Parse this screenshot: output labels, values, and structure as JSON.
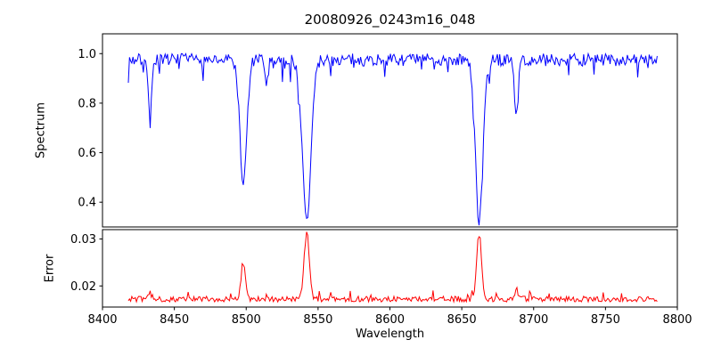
{
  "chart_data": {
    "type": "line",
    "title": "20080926_0243m16_048",
    "xlabel": "Wavelength",
    "xlim": [
      8400,
      8800
    ],
    "xticks": [
      {
        "value": 8400,
        "label": "8400"
      },
      {
        "value": 8450,
        "label": "8450"
      },
      {
        "value": 8500,
        "label": "8500"
      },
      {
        "value": 8550,
        "label": "8550"
      },
      {
        "value": 8600,
        "label": "8600"
      },
      {
        "value": 8650,
        "label": "8650"
      },
      {
        "value": 8700,
        "label": "8700"
      },
      {
        "value": 8750,
        "label": "8750"
      },
      {
        "value": 8800,
        "label": "8800"
      }
    ],
    "x_data_range": [
      8418,
      8786
    ],
    "sample_step": 0.8,
    "noise_seed": 7,
    "grid": false,
    "legend": "none",
    "panels": [
      {
        "name": "spectrum",
        "ylabel": "Spectrum",
        "ylim": [
          0.3,
          1.08
        ],
        "yticks": [
          {
            "value": 0.4,
            "label": "0.4"
          },
          {
            "value": 0.6,
            "label": "0.6"
          },
          {
            "value": 0.8,
            "label": "0.8"
          },
          {
            "value": 1.0,
            "label": "1.0"
          }
        ],
        "line_color": "#0000ff",
        "continuum_level": 0.975,
        "absorption_lines": [
          {
            "center": 8498.0,
            "depth": 0.5,
            "width": 2.4
          },
          {
            "center": 8542.1,
            "depth": 0.65,
            "width": 3.0
          },
          {
            "center": 8662.1,
            "depth": 0.63,
            "width": 2.7
          },
          {
            "center": 8433.0,
            "depth": 0.2,
            "width": 1.3
          },
          {
            "center": 8514.0,
            "depth": 0.11,
            "width": 1.1
          },
          {
            "center": 8688.0,
            "depth": 0.21,
            "width": 1.4
          }
        ],
        "noise_amplitude": 0.05,
        "dip_probability": 0.12,
        "dip_max_depth": 0.07
      },
      {
        "name": "error",
        "ylabel": "Error",
        "ylim": [
          0.0155,
          0.032
        ],
        "yticks": [
          {
            "value": 0.02,
            "label": "0.02"
          },
          {
            "value": 0.03,
            "label": "0.03"
          }
        ],
        "line_color": "#ff0000",
        "baseline_level": 0.0172,
        "peaks": [
          {
            "center": 8498.0,
            "height": 0.0073,
            "width": 1.6
          },
          {
            "center": 8542.1,
            "height": 0.014,
            "width": 1.8
          },
          {
            "center": 8662.1,
            "height": 0.0133,
            "width": 1.7
          },
          {
            "center": 8688.0,
            "height": 0.0022,
            "width": 1.2
          },
          {
            "center": 8433.0,
            "height": 0.0012,
            "width": 1.2
          }
        ],
        "noise_amplitude": 0.0012,
        "spike_probability": 0.06,
        "spike_max_height": 0.0015
      }
    ]
  }
}
